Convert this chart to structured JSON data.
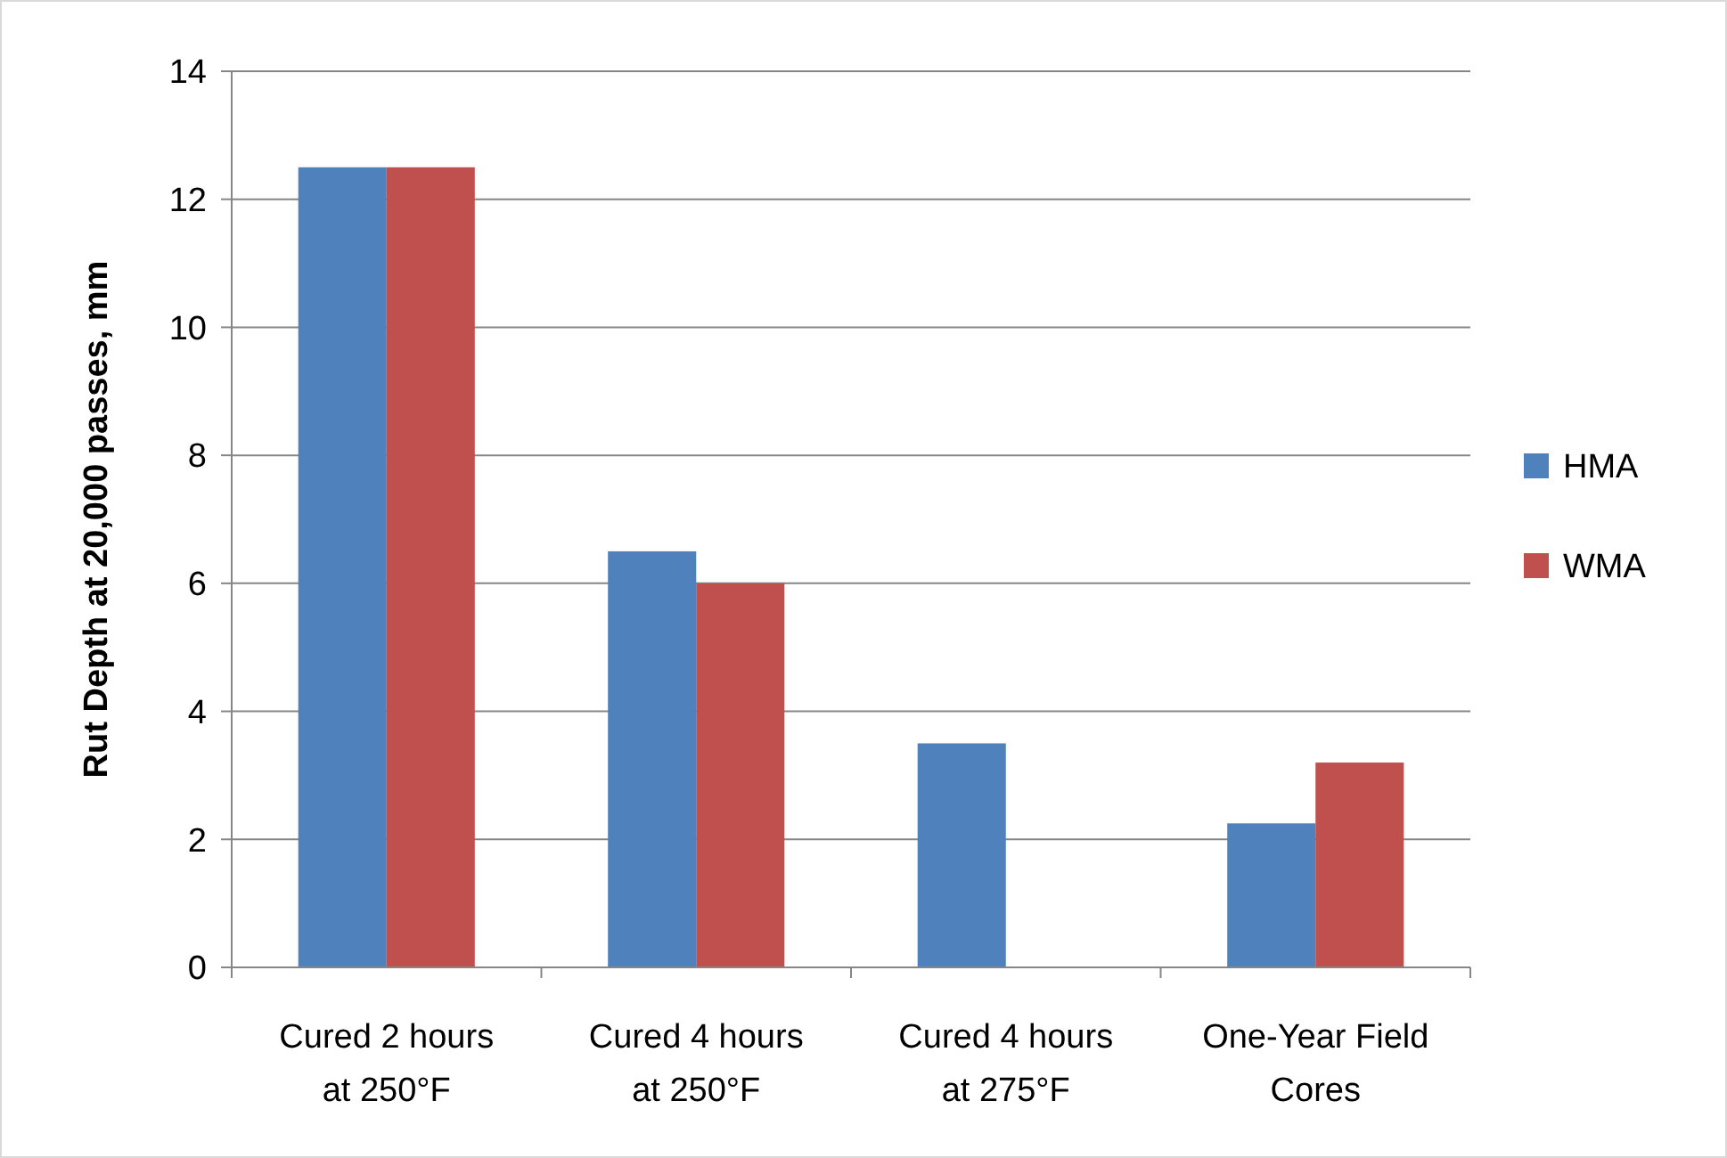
{
  "chart_data": {
    "type": "bar",
    "ylabel": "Rut Depth at 20,000 passes, mm",
    "categories": [
      "Cured 2 hours\nat 250°F",
      "Cured 4 hours\nat 250°F",
      "Cured 4 hours\nat 275°F",
      "One-Year Field\nCores"
    ],
    "series": [
      {
        "name": "HMA",
        "color": "#4f81bd",
        "values": [
          12.5,
          6.5,
          3.5,
          2.25
        ]
      },
      {
        "name": "WMA",
        "color": "#c0504d",
        "values": [
          12.5,
          6,
          null,
          3.2
        ]
      }
    ],
    "ylim": [
      0,
      14
    ],
    "yticks": [
      0,
      2,
      4,
      6,
      8,
      10,
      12,
      14
    ],
    "grid": "y",
    "legend": "right"
  }
}
